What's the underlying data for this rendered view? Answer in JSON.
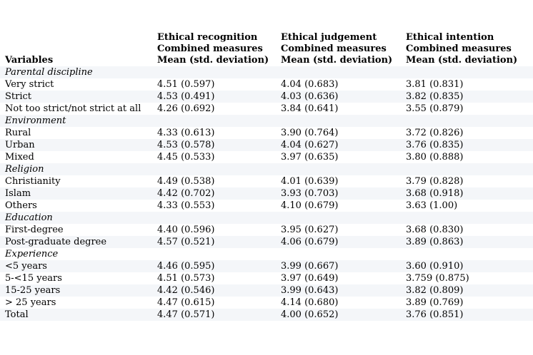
{
  "colors": {
    "background": "#ffffff",
    "text": "#000000",
    "stripe": "#f4f6f9"
  },
  "table": {
    "variables_header": "Variables",
    "columns": [
      {
        "title": "Ethical recognition",
        "subtitle": "Combined measures",
        "measure": "Mean (std. deviation)"
      },
      {
        "title": "Ethical judgement",
        "subtitle": "Combined measures",
        "measure": "Mean (std. deviation)"
      },
      {
        "title": "Ethical intention",
        "subtitle": "Combined measures",
        "measure": "Mean (std. deviation)"
      }
    ],
    "rows": [
      {
        "type": "group",
        "label": "Parental discipline",
        "values": []
      },
      {
        "type": "data",
        "label": "Very strict",
        "values": [
          "4.51 (0.597)",
          "4.04 (0.683)",
          "3.81 (0.831)"
        ]
      },
      {
        "type": "data",
        "label": "Strict",
        "values": [
          "4.53 (0.491)",
          "4.03 (0.636)",
          "3.82 (0.835)"
        ]
      },
      {
        "type": "data",
        "label": "Not too strict/not strict at all",
        "values": [
          "4.26 (0.692)",
          "3.84 (0.641)",
          "3.55 (0.879)"
        ]
      },
      {
        "type": "group",
        "label": "Environment",
        "values": []
      },
      {
        "type": "data",
        "label": "Rural",
        "values": [
          "4.33 (0.613)",
          "3.90 (0.764)",
          "3.72 (0.826)"
        ]
      },
      {
        "type": "data",
        "label": "Urban",
        "values": [
          "4.53 (0.578)",
          "4.04 (0.627)",
          "3.76 (0.835)"
        ]
      },
      {
        "type": "data",
        "label": "Mixed",
        "values": [
          "4.45 (0.533)",
          "3.97 (0.635)",
          "3.80 (0.888)"
        ]
      },
      {
        "type": "group",
        "label": "Religion",
        "values": []
      },
      {
        "type": "data",
        "label": "Christianity",
        "values": [
          "4.49 (0.538)",
          "4.01 (0.639)",
          "3.79 (0.828)"
        ]
      },
      {
        "type": "data",
        "label": "Islam",
        "values": [
          "4.42 (0.702)",
          "3.93 (0.703)",
          "3.68 (0.918)"
        ]
      },
      {
        "type": "data",
        "label": "Others",
        "values": [
          "4.33 (0.553)",
          "4.10 (0.679)",
          "3.63 (1.00)"
        ]
      },
      {
        "type": "group",
        "label": "Education",
        "values": []
      },
      {
        "type": "data",
        "label": "First-degree",
        "values": [
          "4.40 (0.596)",
          "3.95 (0.627)",
          "3.68 (0.830)"
        ]
      },
      {
        "type": "data",
        "label": "Post-graduate degree",
        "values": [
          "4.57 (0.521)",
          "4.06 (0.679)",
          "3.89 (0.863)"
        ]
      },
      {
        "type": "group",
        "label": "Experience",
        "values": []
      },
      {
        "type": "data",
        "label": "<5 years",
        "values": [
          "4.46 (0.595)",
          "3.99 (0.667)",
          "3.60 (0.910)"
        ]
      },
      {
        "type": "data",
        "label": "5-<15 years",
        "values": [
          "4.51 (0.573)",
          "3.97 (0.649)",
          "3.759 (0.875)"
        ]
      },
      {
        "type": "data",
        "label": "15-25 years",
        "values": [
          "4.42 (0.546)",
          "3.99 (0.643)",
          "3.82 (0.809)"
        ]
      },
      {
        "type": "data",
        "label": "> 25 years",
        "values": [
          "4.47 (0.615)",
          "4.14 (0.680)",
          "3.89 (0.769)"
        ]
      },
      {
        "type": "data",
        "label": "Total",
        "values": [
          "4.47 (0.571)",
          "4.00 (0.652)",
          "3.76 (0.851)"
        ]
      }
    ]
  }
}
